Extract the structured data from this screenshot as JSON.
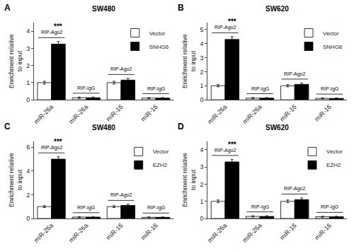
{
  "chart_data": [
    {
      "type": "bar",
      "label": "A",
      "title": "SW480",
      "categories": [
        "miR-26a",
        "miR-26a",
        "miR-16",
        "miR-16"
      ],
      "group_labels": [
        "RIP-Ago2",
        "RIP-IgG",
        "RIP-Ago2",
        "RIP-IgG"
      ],
      "ylabel": "Enrichment relative\nto input",
      "ylim": [
        0,
        4.5
      ],
      "yticks": [
        0,
        1,
        2,
        3,
        4
      ],
      "grid": false,
      "legend": "upper right",
      "series": [
        {
          "name": "Vector",
          "color": "white",
          "values": [
            1.0,
            0.12,
            1.0,
            0.1
          ],
          "errors": [
            0.08,
            0.04,
            0.08,
            0.03
          ]
        },
        {
          "name": "SNHG6",
          "color": "black",
          "values": [
            3.25,
            0.12,
            1.15,
            0.1
          ],
          "errors": [
            0.15,
            0.04,
            0.1,
            0.03
          ],
          "sig": [
            "***",
            null,
            null,
            null
          ]
        }
      ]
    },
    {
      "type": "bar",
      "label": "B",
      "title": "SW620",
      "categories": [
        "miR-26a",
        "miR-26a",
        "miR-16",
        "miR-16"
      ],
      "group_labels": [
        "RIP-Ago2",
        "RIP-IgG",
        "RIP-Ago2",
        "RIP-IgG"
      ],
      "ylabel": "Enrichment relative\nto input",
      "ylim": [
        0,
        5.5
      ],
      "yticks": [
        0,
        1,
        2,
        3,
        4,
        5
      ],
      "grid": false,
      "legend": "upper right",
      "series": [
        {
          "name": "Vector",
          "color": "white",
          "values": [
            1.0,
            0.12,
            1.0,
            0.1
          ],
          "errors": [
            0.08,
            0.04,
            0.08,
            0.03
          ]
        },
        {
          "name": "SNHG6",
          "color": "black",
          "values": [
            4.3,
            0.12,
            1.1,
            0.1
          ],
          "errors": [
            0.2,
            0.04,
            0.1,
            0.03
          ],
          "sig": [
            "***",
            null,
            null,
            null
          ]
        }
      ]
    },
    {
      "type": "bar",
      "label": "C",
      "title": "SW480",
      "categories": [
        "miR-26a",
        "miR-26a",
        "miR-16",
        "miR-16"
      ],
      "group_labels": [
        "RIP-Ago2",
        "RIP-IgG",
        "RIP-Ago2",
        "RIP-IgG"
      ],
      "ylabel": "Enrichment relative\nto input",
      "ylim": [
        0,
        6.5
      ],
      "yticks": [
        0,
        2,
        4,
        6
      ],
      "grid": false,
      "legend": "upper right",
      "series": [
        {
          "name": "Vector",
          "color": "white",
          "values": [
            1.0,
            0.12,
            1.0,
            0.1
          ],
          "errors": [
            0.08,
            0.04,
            0.08,
            0.03
          ]
        },
        {
          "name": "EZH2",
          "color": "black",
          "values": [
            5.0,
            0.12,
            1.1,
            0.1
          ],
          "errors": [
            0.2,
            0.04,
            0.1,
            0.03
          ],
          "sig": [
            "***",
            null,
            null,
            null
          ]
        }
      ]
    },
    {
      "type": "bar",
      "label": "D",
      "title": "SW620",
      "categories": [
        "miR-26a",
        "miR-26a",
        "miR-16",
        "miR-16"
      ],
      "group_labels": [
        "RIP-Ago2",
        "RIP-IgG",
        "RIP-Ago2",
        "RIP-IgG"
      ],
      "ylabel": "Enrichment relative\nto input",
      "ylim": [
        0,
        4.5
      ],
      "yticks": [
        0,
        1,
        2,
        3,
        4
      ],
      "grid": false,
      "legend": "upper right",
      "series": [
        {
          "name": "Vector",
          "color": "white",
          "values": [
            1.0,
            0.12,
            1.0,
            0.1
          ],
          "errors": [
            0.08,
            0.04,
            0.08,
            0.03
          ]
        },
        {
          "name": "EZH2",
          "color": "black",
          "values": [
            3.3,
            0.12,
            1.1,
            0.1
          ],
          "errors": [
            0.15,
            0.04,
            0.1,
            0.03
          ],
          "sig": [
            "***",
            null,
            null,
            null
          ]
        }
      ]
    }
  ]
}
